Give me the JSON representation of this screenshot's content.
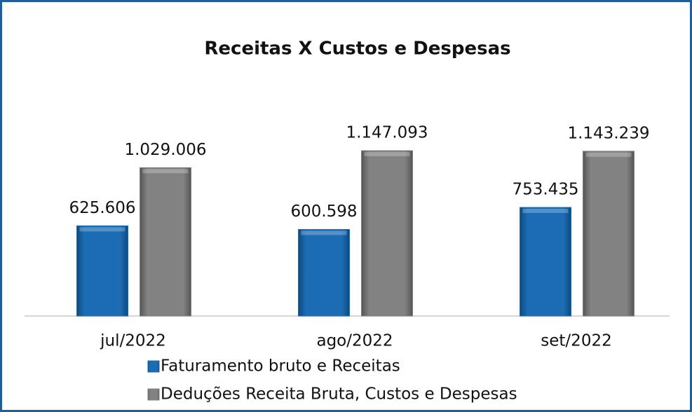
{
  "chart_data": {
    "type": "bar",
    "title": "Receitas X Custos e Despesas",
    "categories": [
      "jul/2022",
      "ago/2022",
      "set/2022"
    ],
    "series": [
      {
        "name": "Faturamento bruto e Receitas",
        "color": "#1b6cb3",
        "values": [
          625606,
          600598,
          753435
        ],
        "value_labels": [
          "625.606",
          "600.598",
          "753.435"
        ]
      },
      {
        "name": "Deduções Receita Bruta, Custos e Despesas",
        "color": "#808080",
        "values": [
          1029006,
          1147093,
          1143239
        ],
        "value_labels": [
          "1.029.006",
          "1.147.093",
          "1.143.239"
        ]
      }
    ],
    "legend": "bottom"
  }
}
